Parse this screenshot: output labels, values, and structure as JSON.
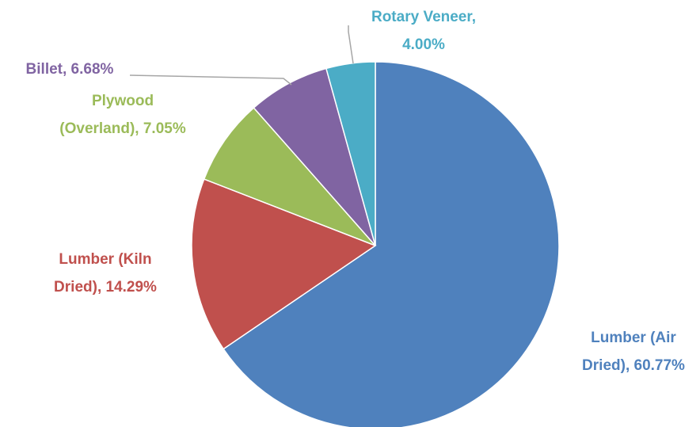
{
  "chart_data": {
    "type": "pie",
    "labels": [
      [
        "Lumber (Air",
        "Dried), 60.77%"
      ],
      [
        "Lumber (Kiln",
        "Dried), 14.29%"
      ],
      [
        "Plywood",
        "(Overland), 7.05%"
      ],
      [
        "Billet, 6.68%"
      ],
      [
        "Rotary Veneer,",
        "4.00%"
      ]
    ],
    "values": [
      60.77,
      14.29,
      7.05,
      6.68,
      4.0
    ],
    "colors": [
      "#4f81bd",
      "#c0504d",
      "#9bbb59",
      "#8064a2",
      "#4bacc6"
    ]
  }
}
